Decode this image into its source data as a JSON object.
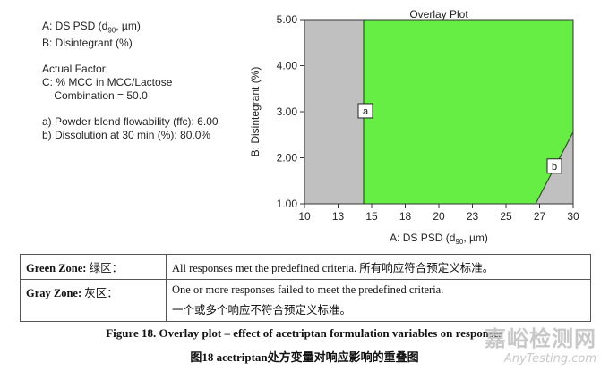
{
  "legend": {
    "factor_a": "A: DS PSD (d",
    "factor_a_sub": "90",
    "factor_a_end": ", µm)",
    "factor_b": "B: Disintegrant (%)",
    "actual_factor_heading": "Actual Factor:",
    "actual_factor_line1": "C: % MCC in MCC/Lactose",
    "actual_factor_line2": "    Combination = 50.0",
    "response_a": "a) Powder blend flowability (ffc): 6.00",
    "response_b": "b) Dissolution at 30 min (%): 80.0%"
  },
  "chart_data": {
    "type": "area",
    "title": "Overlay Plot",
    "xlabel_main": "A: DS PSD (d",
    "xlabel_sub": "90",
    "xlabel_end": ", µm)",
    "ylabel": "B: Disintegrant (%)",
    "xlim": [
      10,
      30
    ],
    "ylim": [
      1.0,
      5.0
    ],
    "x_ticks": [
      "10",
      "13",
      "15",
      "18",
      "20",
      "23",
      "25",
      "27",
      "30"
    ],
    "x_tick_values": [
      10,
      12.5,
      15,
      17.5,
      20,
      22.5,
      25,
      27.5,
      30
    ],
    "y_ticks": [
      "1.00",
      "2.00",
      "3.00",
      "4.00",
      "5.00"
    ],
    "y_tick_values": [
      1.0,
      2.0,
      3.0,
      4.0,
      5.0
    ],
    "colors": {
      "green": "#66ee44",
      "gray": "#c0c0c0"
    },
    "boundary_a": {
      "label": "a",
      "x": 14.4,
      "label_y": 3.02
    },
    "boundary_b": {
      "label": "b",
      "points": [
        [
          27.2,
          1.0
        ],
        [
          30.0,
          2.56
        ]
      ],
      "label_point": [
        28.6,
        1.82
      ]
    }
  },
  "table": {
    "rows": [
      {
        "zone": "Green Zone:",
        "zone_cn": "绿区：",
        "text": "All responses met the predefined criteria. 所有响应符合预定义标准。",
        "text2": ""
      },
      {
        "zone": "Gray Zone:",
        "zone_cn": "灰区：",
        "text": "One or more responses failed to meet the predefined criteria.",
        "text2": "一个或多个响应不符合预定义标准。"
      }
    ]
  },
  "caption": {
    "en": "Figure 18. Overlay plot – effect of acetriptan formulation variables on responses",
    "cn": "图18   acetriptan处方变量对响应影响的重叠图"
  },
  "watermark": {
    "cn": "嘉峪检测网",
    "en": "AnyTesting.com"
  }
}
